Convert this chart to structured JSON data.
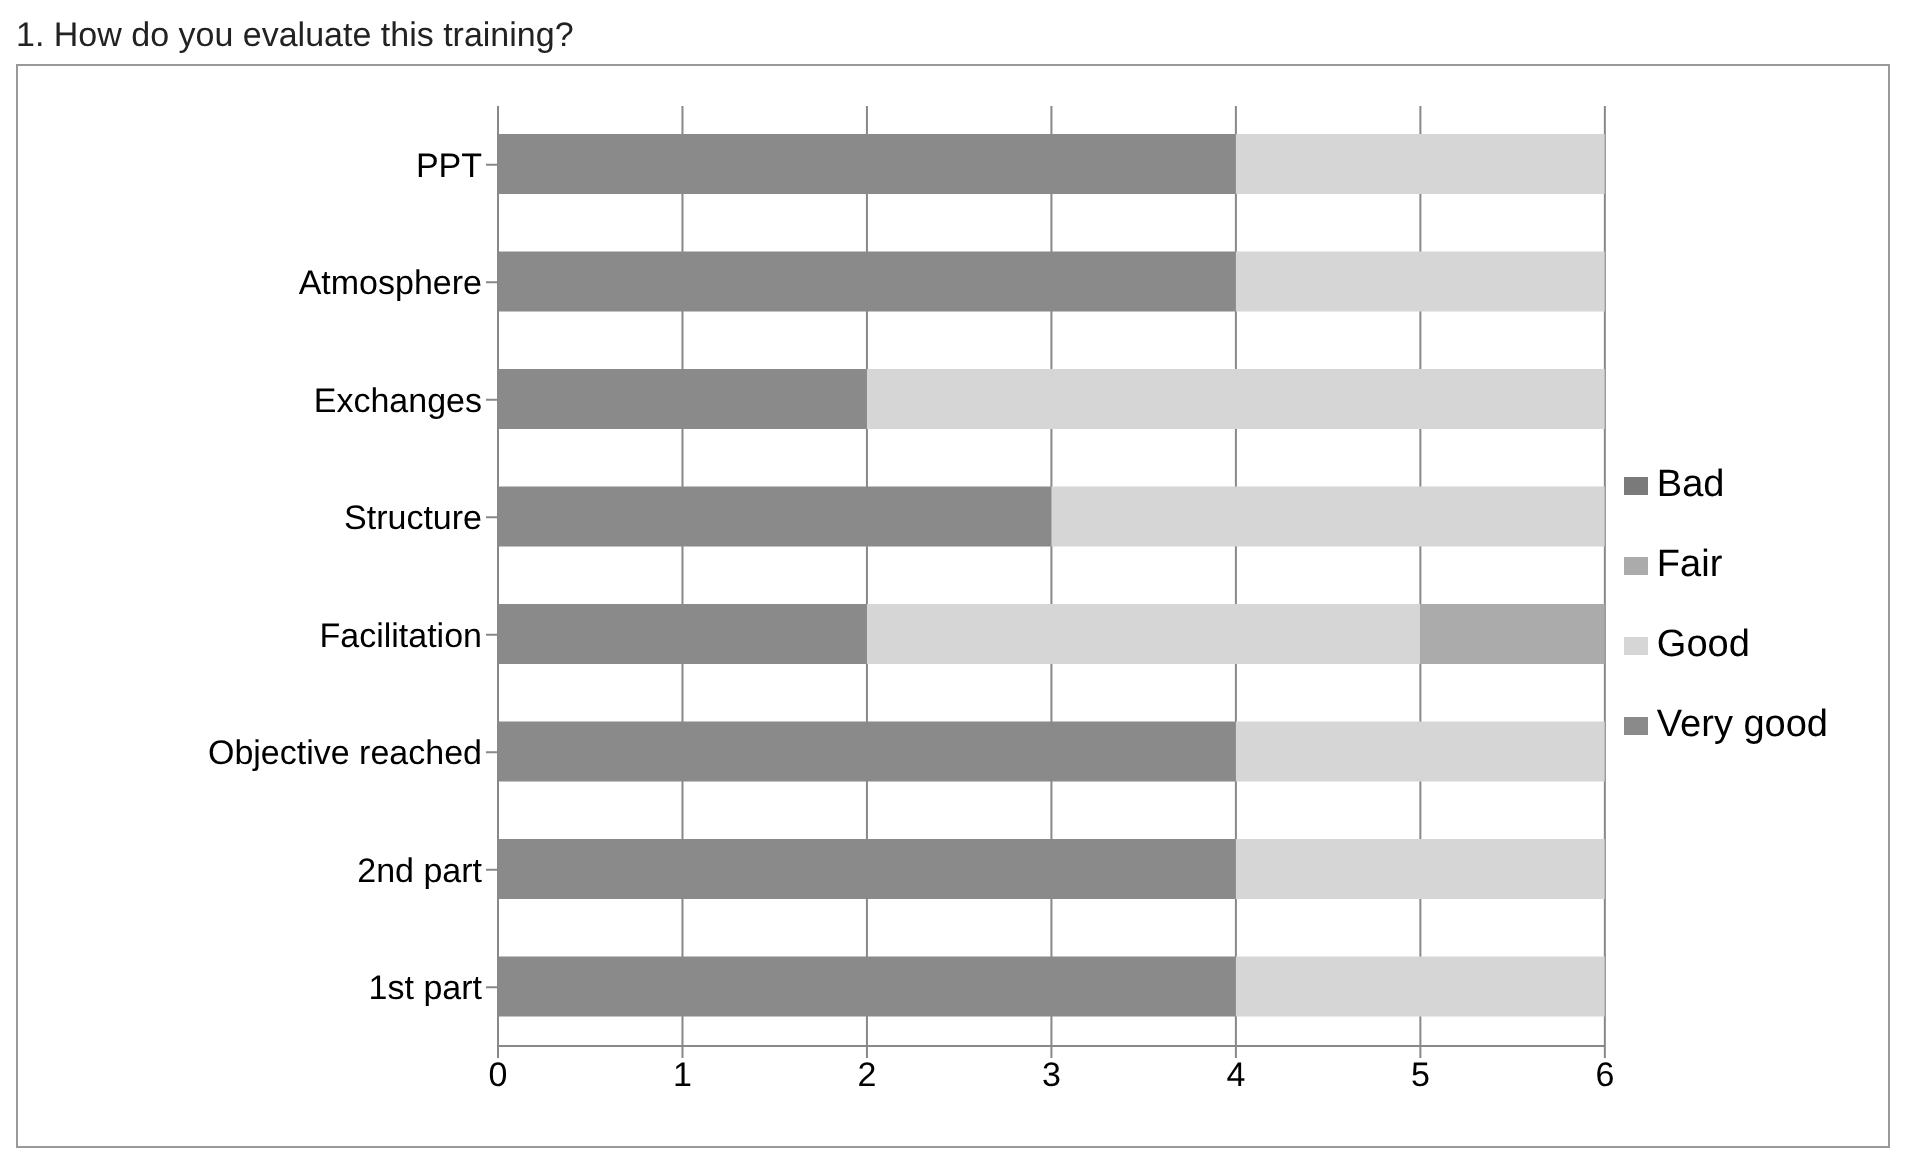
{
  "chart_data": {
    "type": "bar",
    "orientation": "horizontal",
    "stacked": true,
    "title": "1. How do you evaluate this training?",
    "categories": [
      "PPT",
      "Atmosphere",
      "Exchanges",
      "Structure",
      "Facilitation",
      "Objective reached",
      "2nd part",
      "1st part"
    ],
    "series": [
      {
        "name": "Very good",
        "color": "#8a8a8a",
        "values": [
          4,
          4,
          2,
          3,
          2,
          4,
          4,
          4
        ]
      },
      {
        "name": "Good",
        "color": "#d6d6d6",
        "values": [
          2,
          2,
          4,
          3,
          3,
          2,
          2,
          2
        ]
      },
      {
        "name": "Fair",
        "color": "#ababab",
        "values": [
          0,
          0,
          0,
          0,
          1,
          0,
          0,
          0
        ]
      },
      {
        "name": "Bad",
        "color": "#7a7a7a",
        "values": [
          0,
          0,
          0,
          0,
          0,
          0,
          0,
          0
        ]
      }
    ],
    "xlim": [
      0,
      6
    ],
    "xticks": [
      0,
      1,
      2,
      3,
      4,
      5,
      6
    ],
    "grid": "x",
    "legend": "right"
  }
}
